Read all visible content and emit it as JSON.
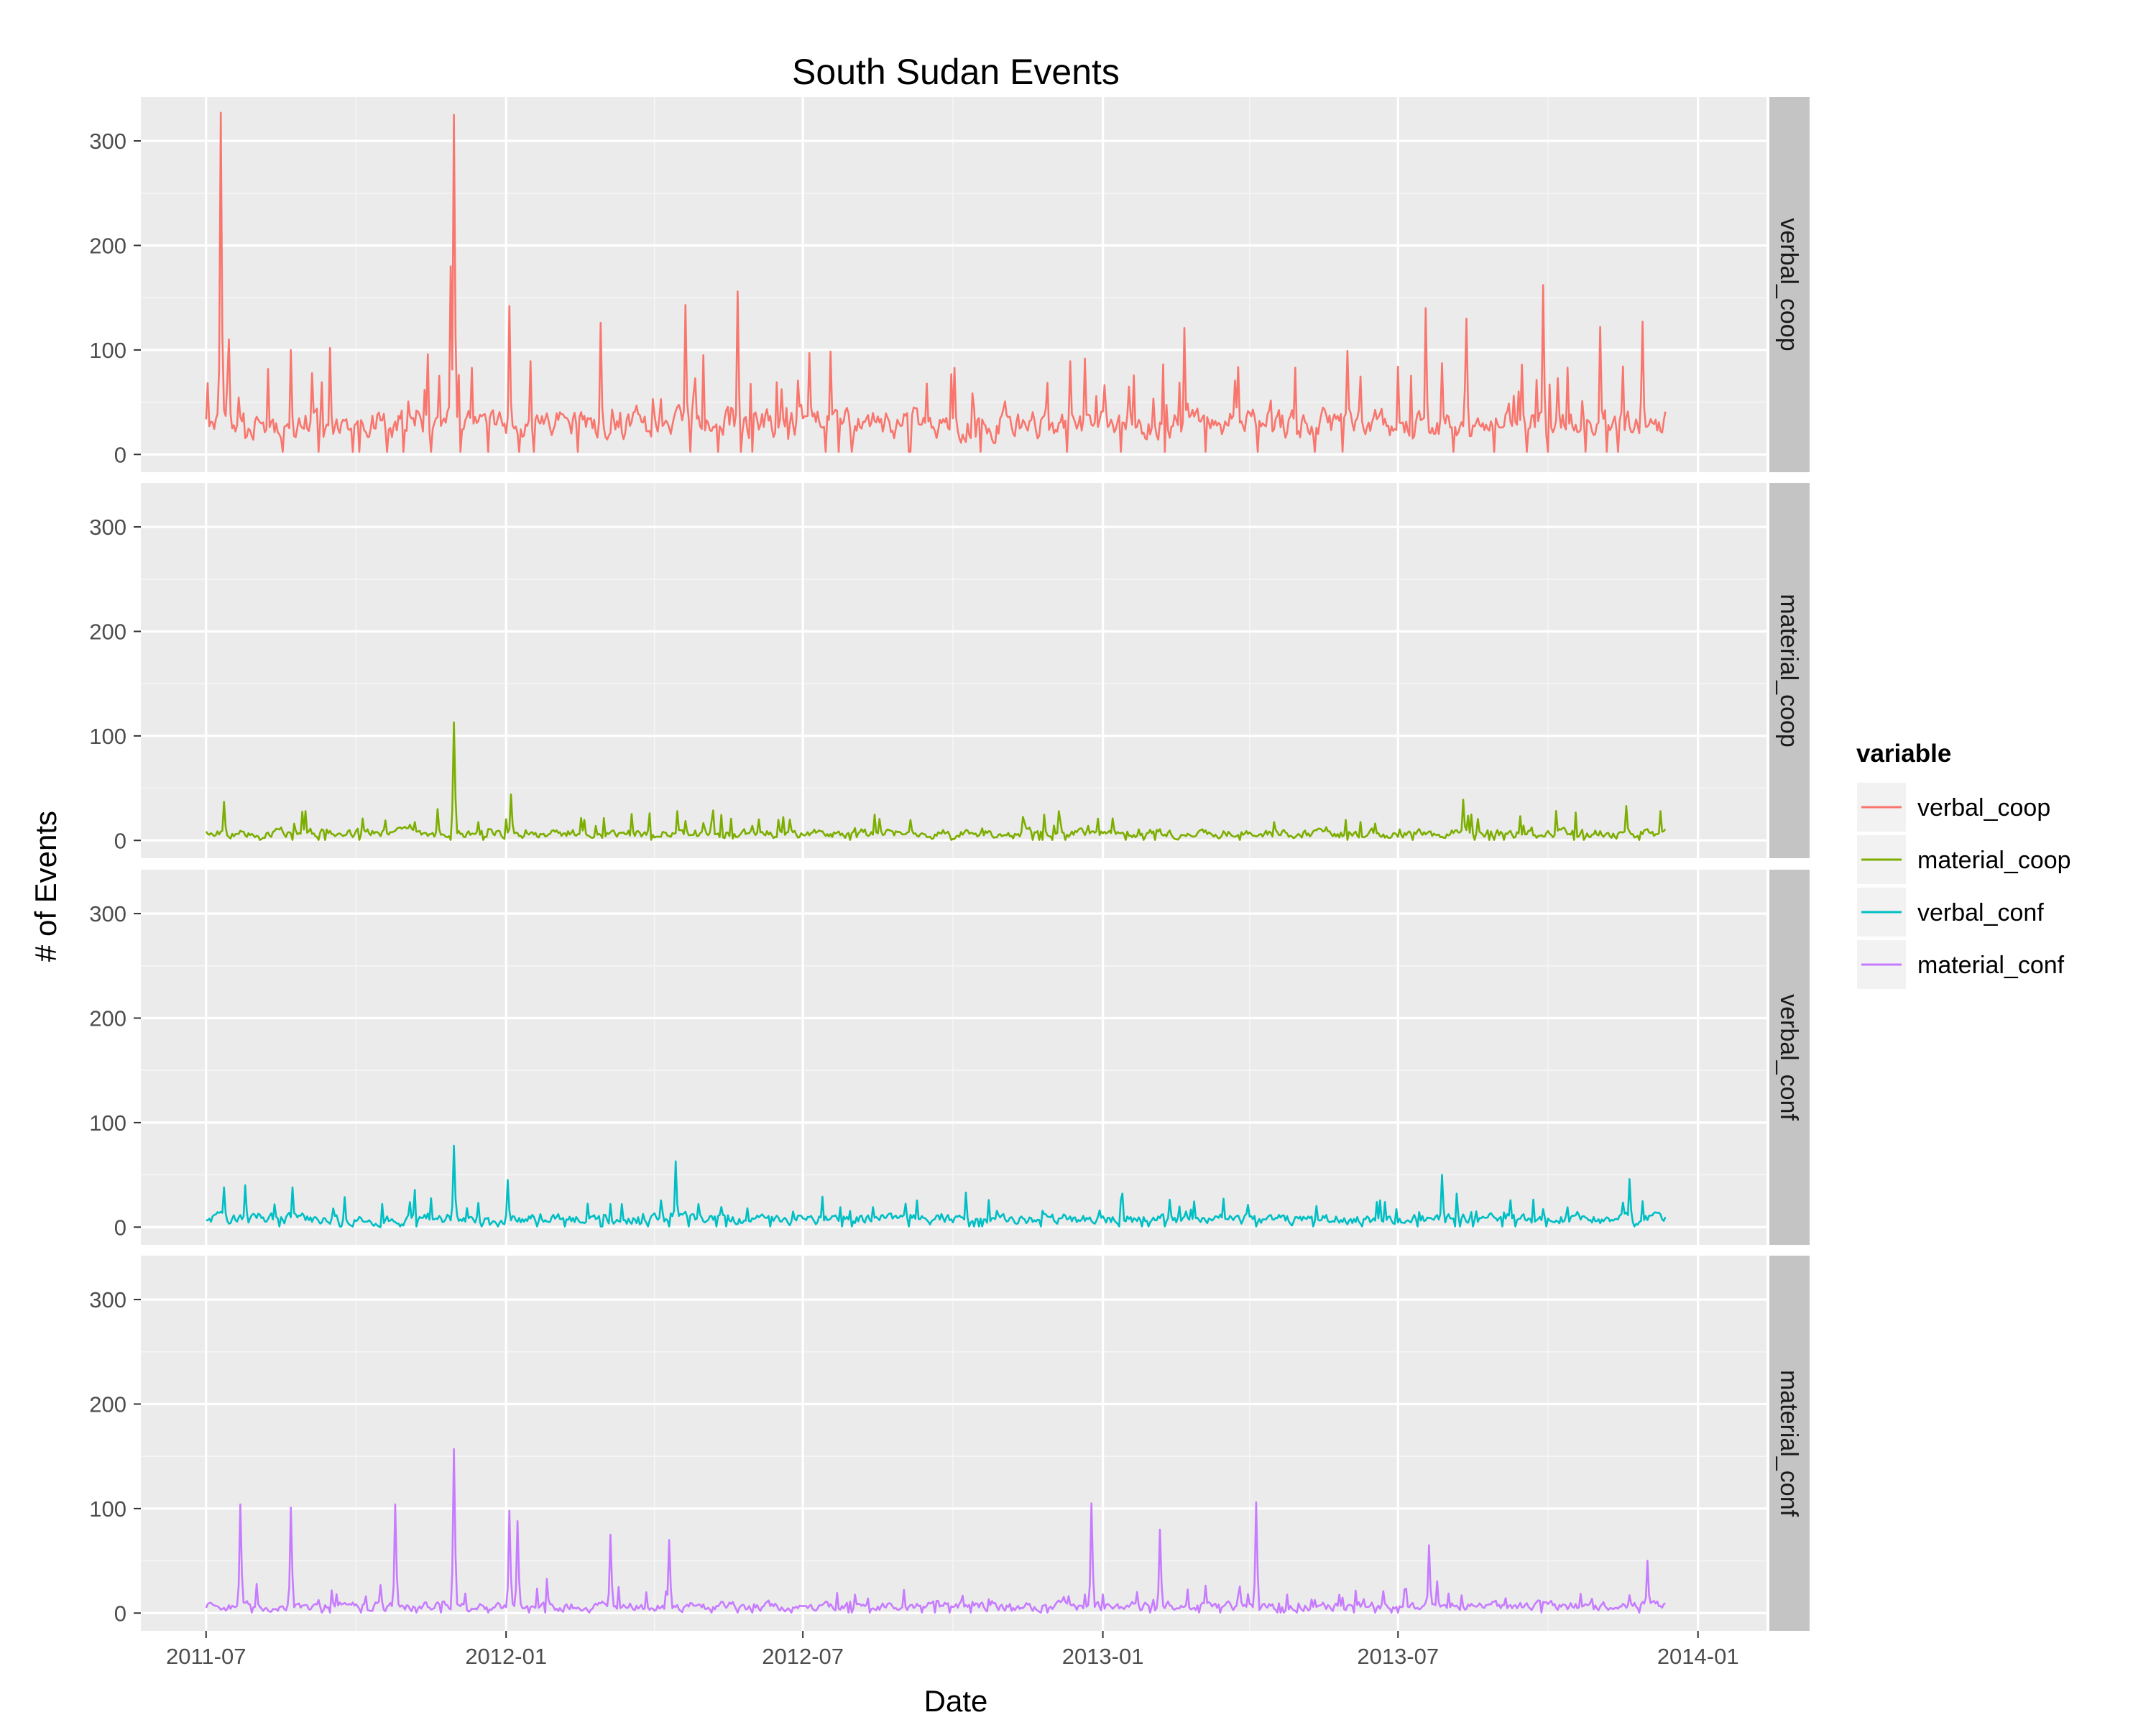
{
  "chart_data": {
    "type": "line",
    "title": "South Sudan Events",
    "xlabel": "Date",
    "ylabel": "# of Events",
    "x_axis": {
      "type": "date",
      "range": [
        "2011-05-22",
        "2014-02-12"
      ],
      "ticks": [
        "2011-07",
        "2012-01",
        "2012-07",
        "2013-01",
        "2013-07",
        "2014-01"
      ]
    },
    "y_axis": {
      "range": [
        -17,
        342
      ],
      "ticks": [
        0,
        100,
        200,
        300
      ]
    },
    "grid": true,
    "facet": "rows",
    "legend": {
      "title": "variable",
      "position": "right",
      "entries": [
        "verbal_coop",
        "material_coop",
        "verbal_conf",
        "material_conf"
      ]
    },
    "series": [
      {
        "name": "verbal_coop",
        "color": "#F8766D",
        "base": 25,
        "noise": 22,
        "start": "2011-07-01",
        "end": "2013-12-12",
        "peaks": [
          [
            "2011-07-10",
            327
          ],
          [
            "2011-07-15",
            110
          ],
          [
            "2011-08-22",
            100
          ],
          [
            "2011-09-15",
            102
          ],
          [
            "2011-11-28",
            180
          ],
          [
            "2011-11-30",
            325
          ],
          [
            "2012-01-03",
            142
          ],
          [
            "2012-02-28",
            126
          ],
          [
            "2012-04-20",
            143
          ],
          [
            "2012-05-22",
            156
          ],
          [
            "2012-07-05",
            97
          ],
          [
            "2013-02-20",
            121
          ],
          [
            "2013-07-18",
            140
          ],
          [
            "2013-08-12",
            130
          ],
          [
            "2013-09-28",
            162
          ],
          [
            "2013-11-02",
            122
          ],
          [
            "2013-11-28",
            127
          ]
        ]
      },
      {
        "name": "material_coop",
        "color": "#7CAE00",
        "base": 5,
        "noise": 7,
        "start": "2011-07-01",
        "end": "2013-12-12",
        "peaks": [
          [
            "2011-07-12",
            37
          ],
          [
            "2011-11-30",
            113
          ],
          [
            "2011-11-20",
            30
          ],
          [
            "2012-01-04",
            44
          ],
          [
            "2012-04-15",
            28
          ],
          [
            "2012-12-05",
            28
          ],
          [
            "2013-08-10",
            39
          ],
          [
            "2013-11-18",
            33
          ]
        ]
      },
      {
        "name": "verbal_conf",
        "color": "#00BFC4",
        "base": 6,
        "noise": 8,
        "start": "2011-07-01",
        "end": "2013-12-12",
        "peaks": [
          [
            "2011-07-12",
            38
          ],
          [
            "2011-07-25",
            40
          ],
          [
            "2011-08-23",
            38
          ],
          [
            "2011-11-30",
            78
          ],
          [
            "2012-01-02",
            45
          ],
          [
            "2012-04-14",
            63
          ],
          [
            "2013-07-28",
            50
          ],
          [
            "2013-11-20",
            46
          ]
        ]
      },
      {
        "name": "material_conf",
        "color": "#C77CFF",
        "base": 5,
        "noise": 7,
        "start": "2011-07-01",
        "end": "2013-12-12",
        "peaks": [
          [
            "2011-07-22",
            104
          ],
          [
            "2011-08-22",
            101
          ],
          [
            "2011-10-25",
            104
          ],
          [
            "2011-11-30",
            157
          ],
          [
            "2012-01-03",
            98
          ],
          [
            "2012-01-08",
            88
          ],
          [
            "2012-03-05",
            75
          ],
          [
            "2012-04-10",
            70
          ],
          [
            "2012-12-25",
            105
          ],
          [
            "2013-02-05",
            80
          ],
          [
            "2013-04-05",
            106
          ],
          [
            "2013-07-20",
            65
          ],
          [
            "2013-12-01",
            50
          ]
        ]
      }
    ]
  }
}
